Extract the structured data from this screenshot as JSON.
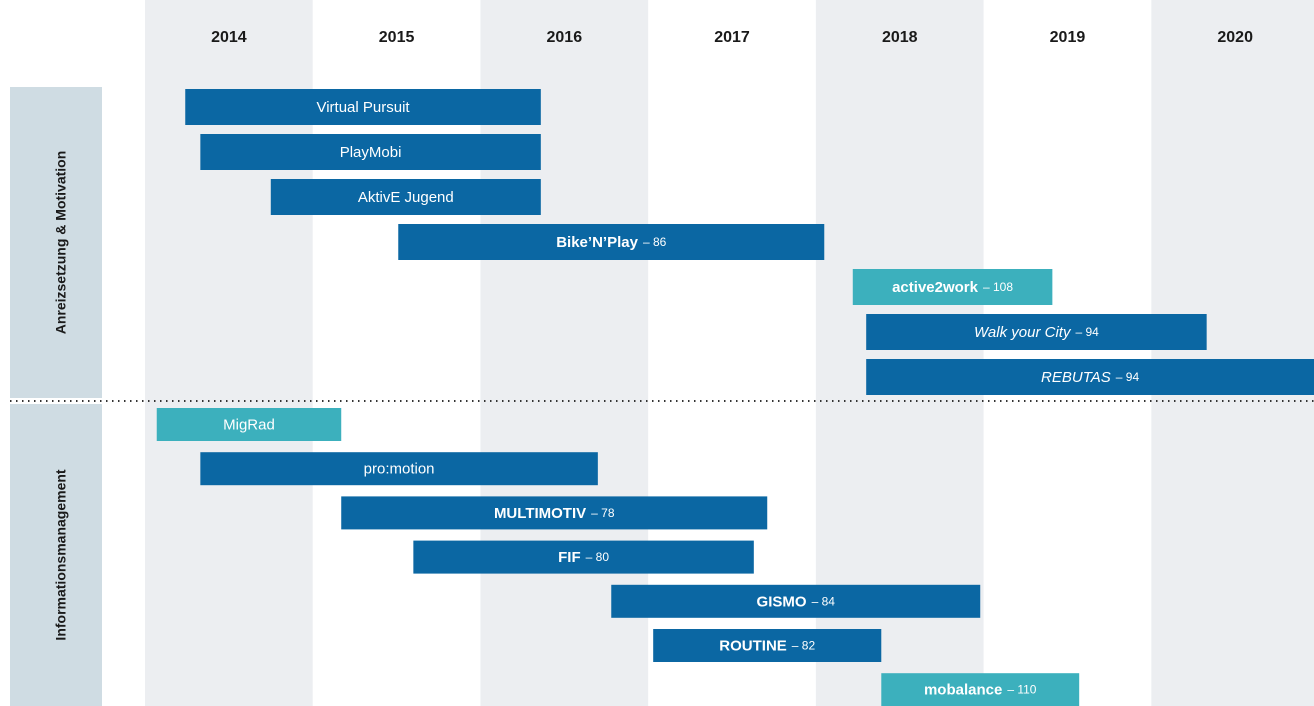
{
  "chart_data": {
    "type": "gantt",
    "xlim": [
      2014,
      2020.97
    ],
    "xticks": [
      2014,
      2015,
      2016,
      2017,
      2018,
      2019,
      2020
    ],
    "shaded_columns": [
      2014,
      2016,
      2018,
      2020
    ],
    "colors": {
      "dark": "#0b67a3",
      "light": "#3cb0bd",
      "shade": "#eceef1",
      "side": "#cfdce3"
    },
    "groups": [
      {
        "name": "Anreizsetzung & Motivation",
        "tasks": [
          {
            "name": "Virtual Pursuit",
            "start": 2014.24,
            "end": 2016.36,
            "style": "normal",
            "color": "dark"
          },
          {
            "name": "PlayMobi",
            "start": 2014.33,
            "end": 2016.36,
            "style": "normal",
            "color": "dark"
          },
          {
            "name": "AktivE Jugend",
            "start": 2014.75,
            "end": 2016.36,
            "style": "normal",
            "color": "dark"
          },
          {
            "name": "Bike’N’Play",
            "note": "– 86",
            "start": 2015.51,
            "end": 2018.05,
            "style": "bold",
            "color": "dark"
          },
          {
            "name": "active2work",
            "note": "– 108",
            "start": 2018.22,
            "end": 2019.41,
            "style": "bold",
            "color": "light"
          },
          {
            "name": "Walk your City",
            "note": "– 94",
            "start": 2018.3,
            "end": 2020.33,
            "style": "italic",
            "color": "dark"
          },
          {
            "name": "REBUTAS",
            "note": "– 94",
            "start": 2018.3,
            "end": 2020.97,
            "style": "italic",
            "color": "dark"
          }
        ]
      },
      {
        "name": "Informationsmanagement",
        "tasks": [
          {
            "name": "MigRad",
            "start": 2014.07,
            "end": 2015.17,
            "style": "normal",
            "color": "light"
          },
          {
            "name": "pro:motion",
            "start": 2014.33,
            "end": 2016.7,
            "style": "normal",
            "color": "dark"
          },
          {
            "name": "MULTIMOTIV",
            "note": "– 78",
            "start": 2015.17,
            "end": 2017.71,
            "style": "bold",
            "color": "dark"
          },
          {
            "name": "FIF",
            "note": "– 80",
            "start": 2015.6,
            "end": 2017.63,
            "style": "bold",
            "color": "dark"
          },
          {
            "name": "GISMO",
            "note": "– 84",
            "start": 2016.78,
            "end": 2018.98,
            "style": "bold",
            "color": "dark"
          },
          {
            "name": "ROUTINE",
            "note": "– 82",
            "start": 2017.03,
            "end": 2018.39,
            "style": "bold",
            "color": "dark"
          },
          {
            "name": "mobalance",
            "note": "– 110",
            "start": 2018.39,
            "end": 2019.57,
            "style": "bold",
            "color": "light"
          }
        ]
      }
    ]
  }
}
